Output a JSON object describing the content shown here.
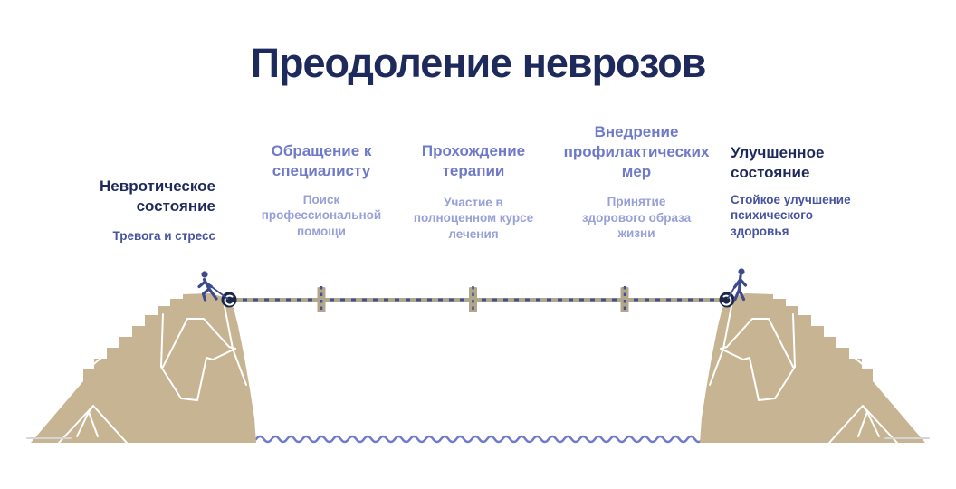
{
  "title": "Преодоление неврозов",
  "steps": [
    {
      "heading": "Невротическое\nсостояние",
      "subtitle": "Тревога и стресс"
    },
    {
      "heading": "Обращение к\nспециалисту",
      "subtitle": "Поиск\nпрофессиональной\nпомощи"
    },
    {
      "heading": "Прохождение\nтерапии",
      "subtitle": "Участие в\nполноценном курсе\nлечения"
    },
    {
      "heading": "Внедрение\nпрофилактических\nмер",
      "subtitle": "Принятие\nздорового образа\nжизни"
    },
    {
      "heading": "Улучшенное\nсостояние",
      "subtitle": "Стойкое улучшение\nпсихического\nздоровья"
    }
  ],
  "scene": {
    "left_figure_icon": "walking-person-icon",
    "right_figure_icon": "standing-person-icon",
    "left_landform": "cliff",
    "right_landform": "cliff",
    "bridge": "tightrope with 3 cross markers",
    "water": "wavy water line between cliffs"
  },
  "colors": {
    "title": "#1f2a5c",
    "heading_dark": "#1f2a5c",
    "heading_periwinkle": "#6e7ac9",
    "subtitle_blue": "#46539f",
    "subtitle_light": "#98a0d8",
    "mountain": "#c6b493",
    "mountain_line": "#ffffff",
    "rope": "#b0a78d",
    "rope_dash": "#41508e",
    "anchor": "#1c2647",
    "figure": "#3d4b8e",
    "wave": "#6d7bc8",
    "ground": "#d5d5d5",
    "background": "#ffffff"
  }
}
